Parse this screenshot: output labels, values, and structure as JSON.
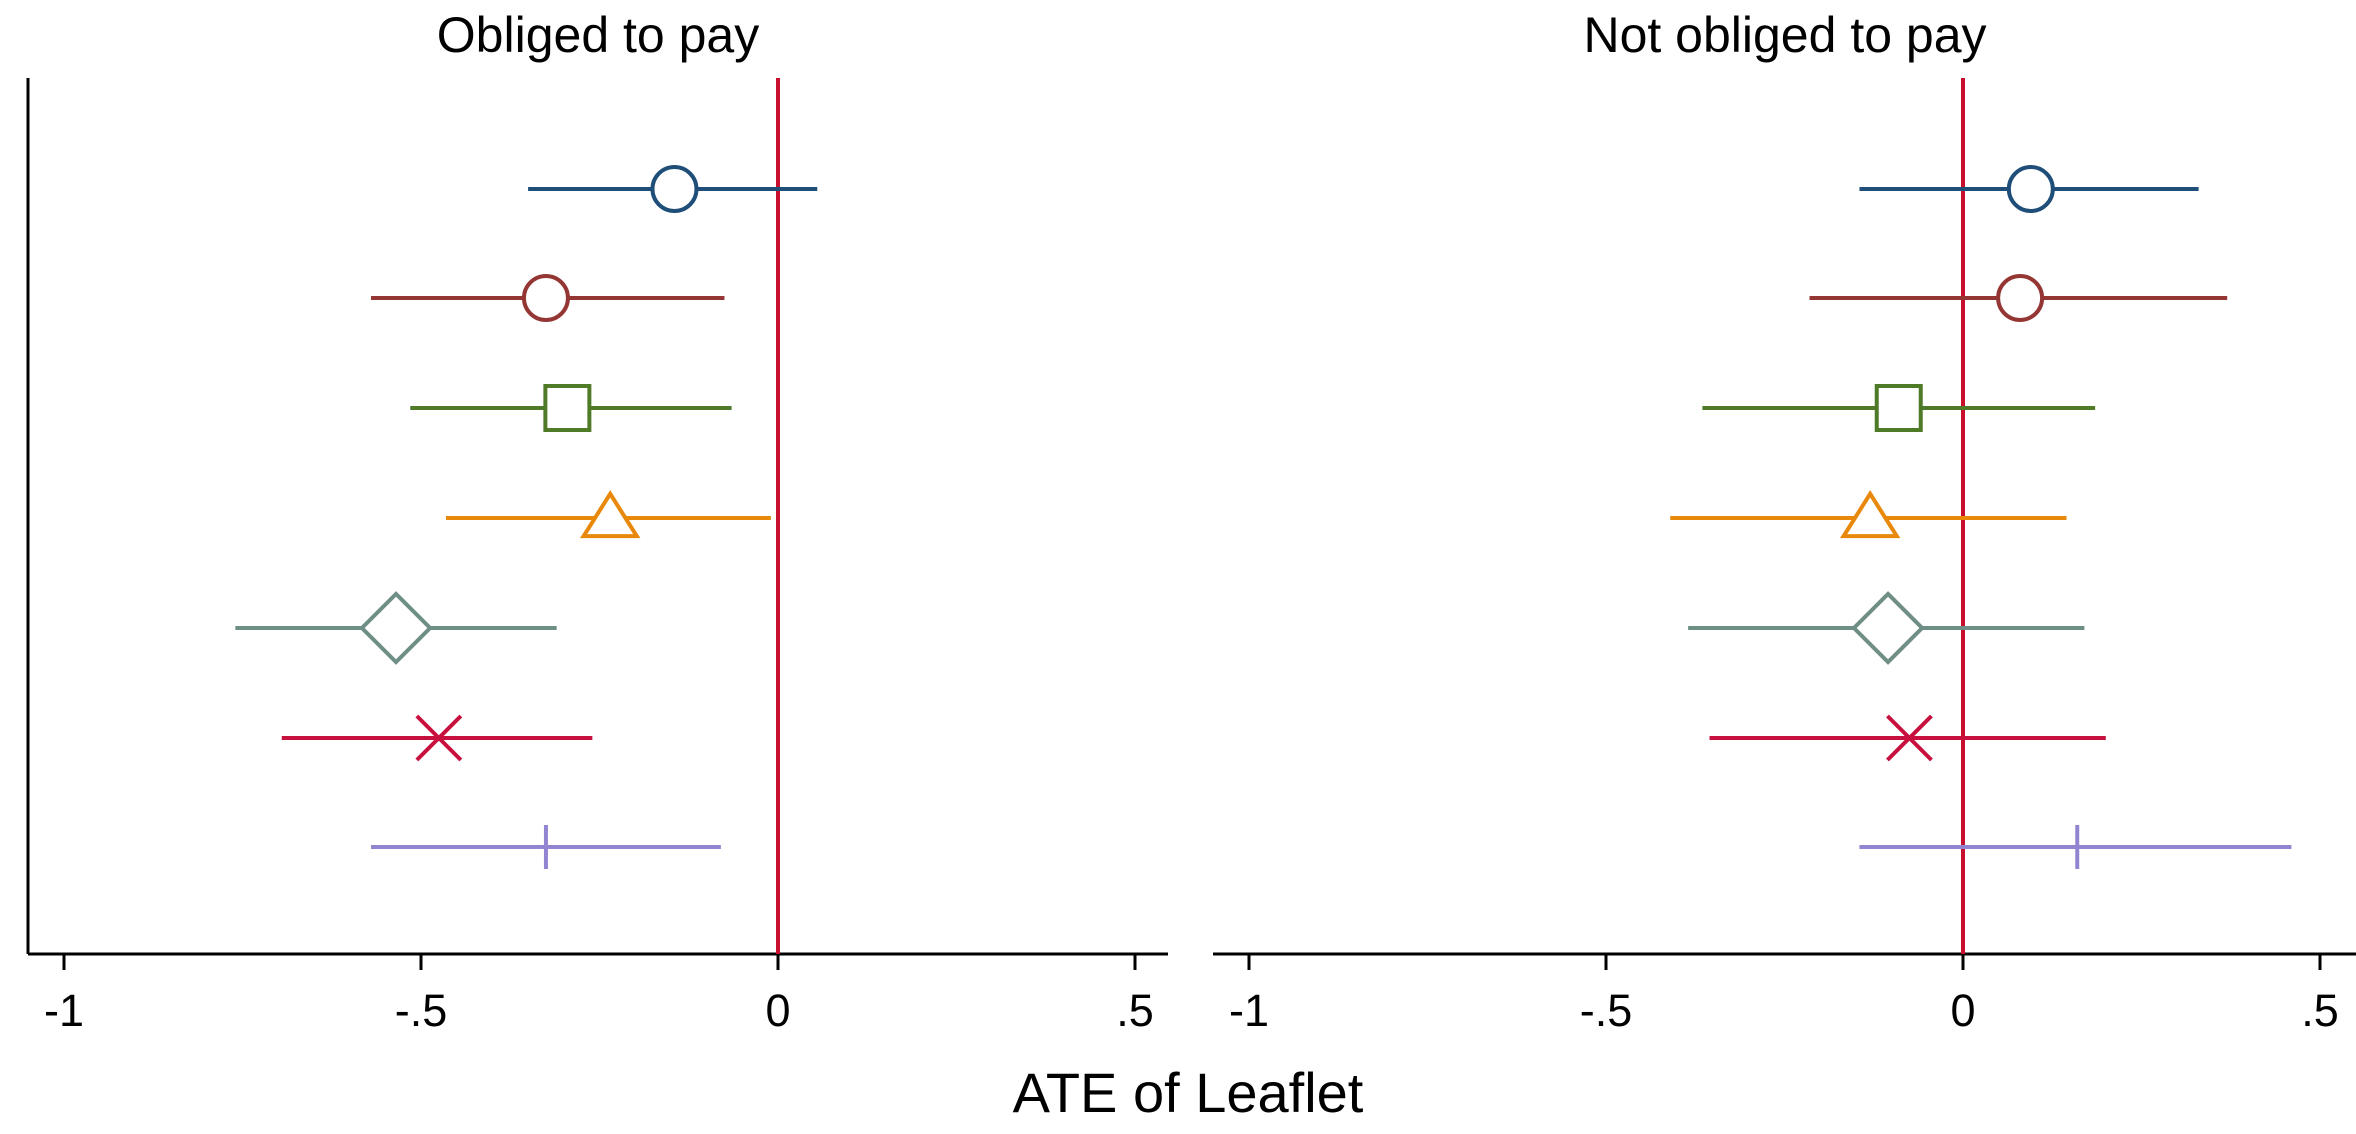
{
  "chart_data": {
    "type": "scatter",
    "xlabel": "ATE of Leaflet",
    "xticks": [
      {
        "value": -1,
        "label": "-1"
      },
      {
        "value": -0.5,
        "label": "-.5"
      },
      {
        "value": 0,
        "label": "0"
      },
      {
        "value": 0.5,
        "label": ".5"
      }
    ],
    "xlim": [
      -1.05,
      0.55
    ],
    "reference_line": {
      "x": 0,
      "color": "#c8102e"
    },
    "grid": false,
    "legend": "none",
    "series_styles": [
      {
        "marker": "circle",
        "color": "#1f4e79"
      },
      {
        "marker": "circle",
        "color": "#943634"
      },
      {
        "marker": "square",
        "color": "#4f7a28"
      },
      {
        "marker": "triangle",
        "color": "#e8890c"
      },
      {
        "marker": "diamond",
        "color": "#6f8f86"
      },
      {
        "marker": "x",
        "color": "#c8103e"
      },
      {
        "marker": "plus",
        "color": "#9384d1"
      }
    ],
    "panels": [
      {
        "title": "Obliged to pay",
        "estimates": [
          {
            "value": -0.145,
            "ci_low": -0.35,
            "ci_high": 0.055
          },
          {
            "value": -0.325,
            "ci_low": -0.57,
            "ci_high": -0.075
          },
          {
            "value": -0.295,
            "ci_low": -0.515,
            "ci_high": -0.065
          },
          {
            "value": -0.235,
            "ci_low": -0.465,
            "ci_high": -0.01
          },
          {
            "value": -0.535,
            "ci_low": -0.76,
            "ci_high": -0.31
          },
          {
            "value": -0.475,
            "ci_low": -0.695,
            "ci_high": -0.26
          },
          {
            "value": -0.325,
            "ci_low": -0.57,
            "ci_high": -0.08
          }
        ]
      },
      {
        "title": "Not obliged to pay",
        "estimates": [
          {
            "value": 0.095,
            "ci_low": -0.145,
            "ci_high": 0.33
          },
          {
            "value": 0.08,
            "ci_low": -0.215,
            "ci_high": 0.37
          },
          {
            "value": -0.09,
            "ci_low": -0.365,
            "ci_high": 0.185
          },
          {
            "value": -0.13,
            "ci_low": -0.41,
            "ci_high": 0.145
          },
          {
            "value": -0.105,
            "ci_low": -0.385,
            "ci_high": 0.17
          },
          {
            "value": -0.075,
            "ci_low": -0.355,
            "ci_high": 0.2
          },
          {
            "value": 0.16,
            "ci_low": -0.145,
            "ci_high": 0.46
          }
        ]
      }
    ]
  }
}
